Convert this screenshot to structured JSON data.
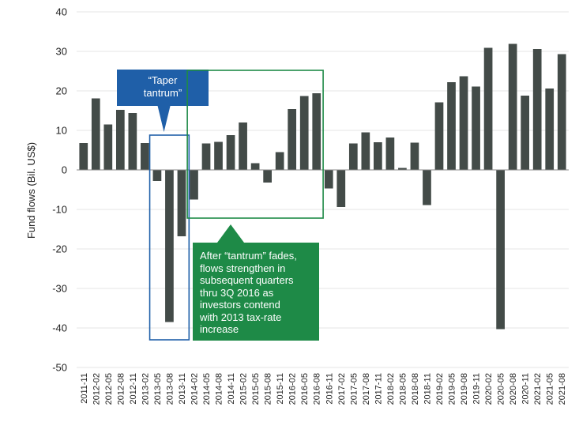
{
  "chart_data": {
    "type": "bar",
    "ylabel": "Fund flows (Bil. US$)",
    "ylim": [
      -50,
      40
    ],
    "yticks": [
      40,
      30,
      20,
      10,
      0,
      -10,
      -20,
      -30,
      -40,
      -50
    ],
    "grid": true,
    "categories": [
      "2011-11",
      "2012-02",
      "2012-05",
      "2012-08",
      "2012-11",
      "2013-02",
      "2013-05",
      "2013-08",
      "2013-11",
      "2014-02",
      "2014-05",
      "2014-08",
      "2014-11",
      "2015-02",
      "2015-05",
      "2015-08",
      "2015-11",
      "2016-02",
      "2016-05",
      "2016-08",
      "2016-11",
      "2017-02",
      "2017-05",
      "2017-08",
      "2017-11",
      "2018-02",
      "2018-05",
      "2018-08",
      "2018-11",
      "2019-02",
      "2019-05",
      "2019-08",
      "2019-11",
      "2020-02",
      "2020-05",
      "2020-08",
      "2020-11",
      "2021-02",
      "2021-05",
      "2021-08"
    ],
    "values": [
      6.8,
      18.1,
      11.5,
      15.2,
      14.4,
      6.8,
      -2.8,
      -38.5,
      -16.8,
      -7.5,
      6.7,
      7.1,
      8.8,
      12.0,
      1.7,
      -3.2,
      4.5,
      15.4,
      18.7,
      19.4,
      -4.7,
      -9.4,
      6.7,
      9.5,
      7.0,
      8.2,
      0.5,
      6.9,
      -8.9,
      17.1,
      22.2,
      23.7,
      21.1,
      30.9,
      -40.3,
      31.9,
      18.8,
      30.6,
      20.6,
      29.3
    ],
    "bar_color": "#434b48",
    "annotations": [
      {
        "id": "taper",
        "text_lines": [
          "“Taper",
          "tantrum”"
        ],
        "box_color": "#1f5fa8",
        "highlight": [
          "2013-05",
          "2013-11"
        ]
      },
      {
        "id": "after",
        "text_lines": [
          "After “tantrum” fades,",
          "flows strengthen in",
          "subsequent quarters",
          "thru 3Q 2016 as",
          "investors contend",
          "with 2013 tax-rate",
          "increase"
        ],
        "box_color": "#1e8a47",
        "highlight": [
          "2014-02",
          "2016-08"
        ]
      }
    ]
  }
}
